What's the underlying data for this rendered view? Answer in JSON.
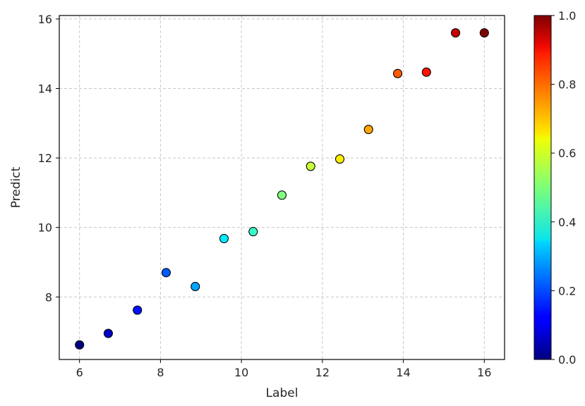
{
  "chart_data": {
    "type": "scatter",
    "xlabel": "Label",
    "ylabel": "Predict",
    "xlim": [
      5.5,
      16.5
    ],
    "ylim": [
      6.2,
      16.1
    ],
    "xticks": [
      6,
      8,
      10,
      12,
      14,
      16
    ],
    "yticks": [
      8,
      10,
      12,
      14,
      16
    ],
    "grid": true,
    "colormap": "jet",
    "colorbar": {
      "range": [
        0.0,
        1.0
      ],
      "ticks": [
        0.0,
        0.2,
        0.4,
        0.6,
        0.8,
        1.0
      ],
      "tick_labels": [
        "0.0",
        "0.2",
        "0.4",
        "0.6",
        "0.8",
        "1.0"
      ]
    },
    "points": [
      {
        "x": 6.0,
        "y": 6.62,
        "c": 0.0
      },
      {
        "x": 6.71,
        "y": 6.95,
        "c": 0.0714
      },
      {
        "x": 7.43,
        "y": 7.62,
        "c": 0.1429
      },
      {
        "x": 8.14,
        "y": 8.7,
        "c": 0.2143
      },
      {
        "x": 8.86,
        "y": 8.3,
        "c": 0.2857
      },
      {
        "x": 9.57,
        "y": 9.68,
        "c": 0.3571
      },
      {
        "x": 10.29,
        "y": 9.88,
        "c": 0.4286
      },
      {
        "x": 11.0,
        "y": 10.93,
        "c": 0.5
      },
      {
        "x": 11.71,
        "y": 11.76,
        "c": 0.5714
      },
      {
        "x": 12.43,
        "y": 11.97,
        "c": 0.6429
      },
      {
        "x": 13.14,
        "y": 12.82,
        "c": 0.7143
      },
      {
        "x": 13.86,
        "y": 14.43,
        "c": 0.7857
      },
      {
        "x": 14.57,
        "y": 14.47,
        "c": 0.8571
      },
      {
        "x": 15.29,
        "y": 15.6,
        "c": 0.9286
      },
      {
        "x": 16.0,
        "y": 15.6,
        "c": 1.0
      }
    ]
  }
}
